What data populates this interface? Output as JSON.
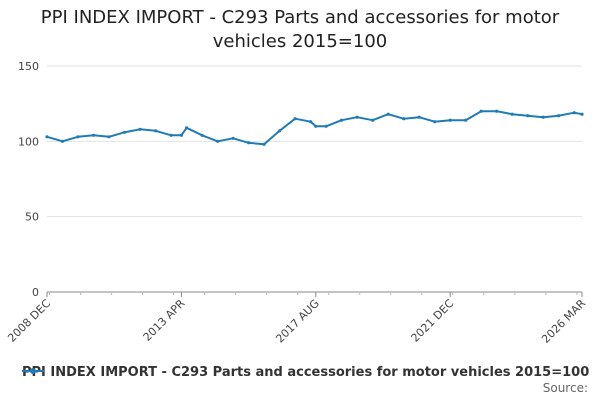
{
  "chart_data": {
    "type": "line",
    "title_line1": "PPI INDEX IMPORT - C293 Parts and accessories for motor",
    "title_line2": "vehicles 2015=100",
    "source": "Source:",
    "color": "#1f7bb8",
    "ylim": [
      0,
      150
    ],
    "yticks": [
      "0",
      "50",
      "100",
      "150"
    ],
    "xticks": [
      "2008 DEC",
      "2013 APR",
      "2017 AUG",
      "2021 DEC",
      "2026 MAR"
    ],
    "grid": true,
    "legend_position": "bottom",
    "series": [
      {
        "name": "PPI INDEX IMPORT - C293 Parts and accessories for motor vehicles 2015=100",
        "x": [
          "2008 DEC",
          "2009 JUN",
          "2009 DEC",
          "2010 JUN",
          "2010 DEC",
          "2011 JUN",
          "2011 DEC",
          "2012 JUN",
          "2012 DEC",
          "2013 APR",
          "2013 JUN",
          "2013 DEC",
          "2014 JUN",
          "2014 DEC",
          "2015 JUN",
          "2015 DEC",
          "2016 JUN",
          "2016 DEC",
          "2017 JUN",
          "2017 AUG",
          "2017 DEC",
          "2018 JUN",
          "2018 DEC",
          "2019 JUN",
          "2019 DEC",
          "2020 JUN",
          "2020 DEC",
          "2021 JUN",
          "2021 DEC",
          "2022 JUN",
          "2022 DEC",
          "2023 JUN",
          "2023 DEC",
          "2024 JUN",
          "2024 DEC",
          "2025 JUN",
          "2025 DEC",
          "2026 MAR"
        ],
        "values": [
          103,
          100,
          103,
          104,
          103,
          106,
          108,
          107,
          104,
          104,
          109,
          104,
          100,
          102,
          99,
          98,
          107,
          115,
          113,
          110,
          110,
          114,
          116,
          114,
          118,
          115,
          116,
          113,
          114,
          114,
          120,
          120,
          118,
          117,
          116,
          117,
          119,
          118
        ]
      }
    ]
  }
}
